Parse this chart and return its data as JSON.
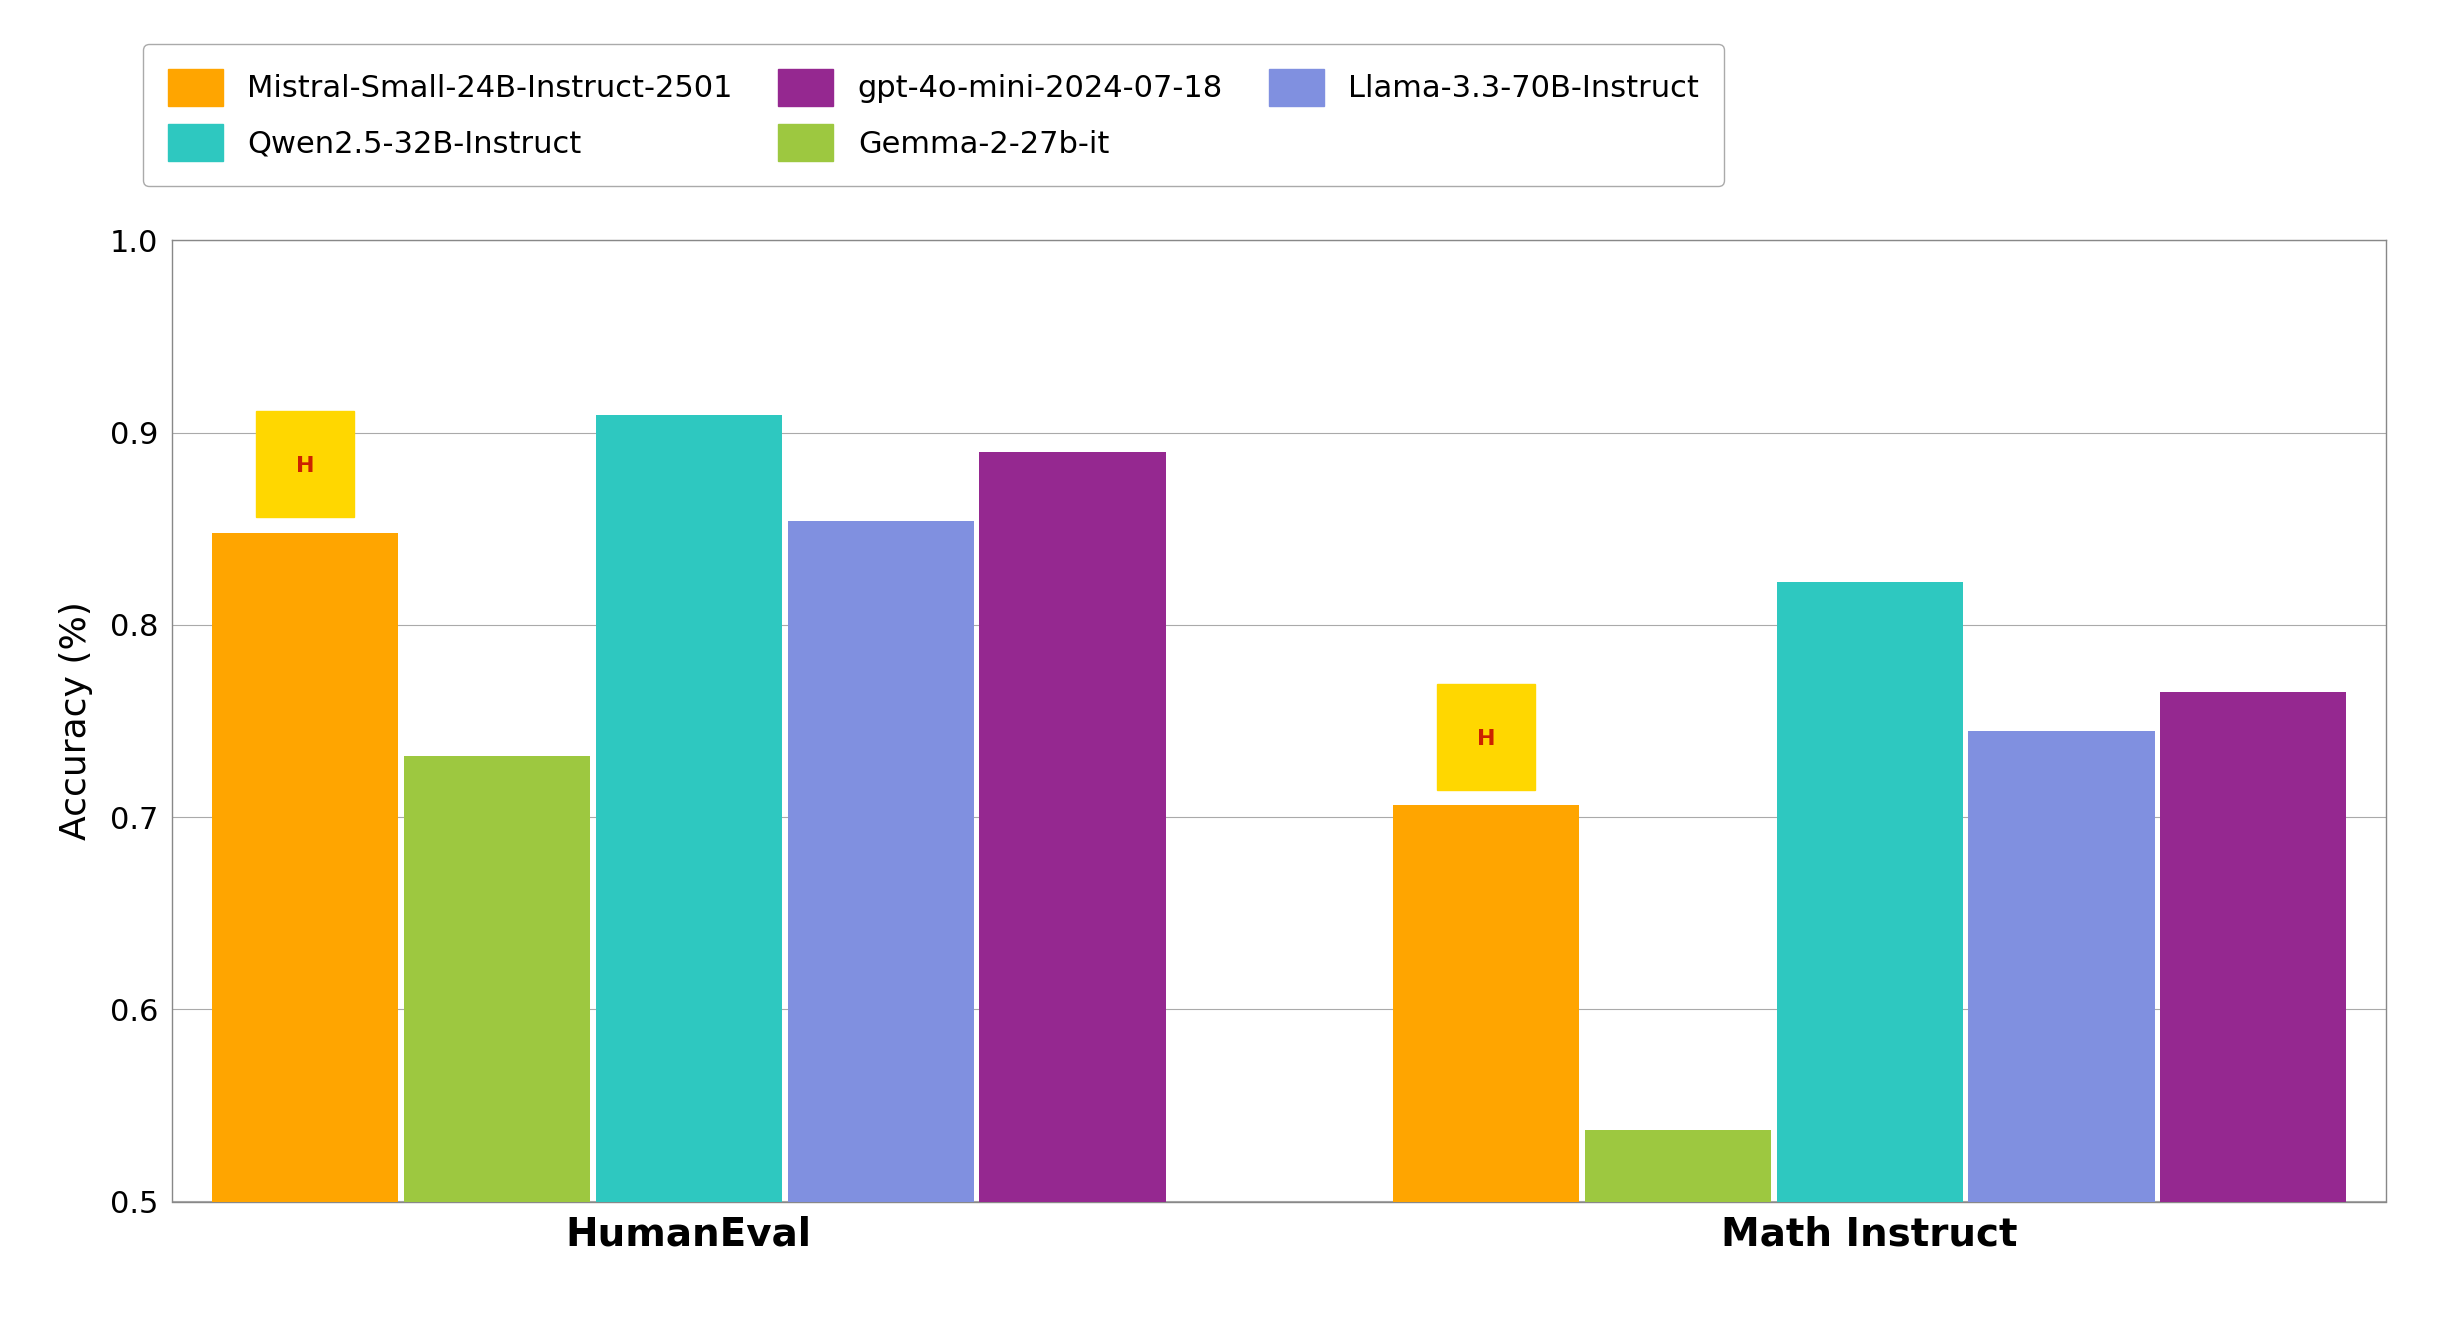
{
  "categories": [
    "HumanEval",
    "Math Instruct"
  ],
  "models": [
    "Mistral-Small-24B-Instruct-2501",
    "Gemma-2-27b-it",
    "Qwen2.5-32B-Instruct",
    "Llama-3.3-70B-Instruct",
    "gpt-4o-mini-2024-07-18"
  ],
  "colors": [
    "#FFA500",
    "#9DC840",
    "#2EC8C0",
    "#8090E0",
    "#952890"
  ],
  "values": {
    "HumanEval": [
      0.848,
      0.732,
      0.909,
      0.854,
      0.89
    ],
    "Math Instruct": [
      0.706,
      0.537,
      0.822,
      0.745,
      0.765
    ]
  },
  "ylabel": "Accuracy (%)",
  "ylim": [
    0.5,
    1.0
  ],
  "yticks": [
    0.5,
    0.6,
    0.7,
    0.8,
    0.9,
    1.0
  ],
  "background_color": "#ffffff",
  "bar_width": 0.13,
  "group_positions": [
    0.35,
    1.15
  ],
  "xlim": [
    0.0,
    1.5
  ]
}
